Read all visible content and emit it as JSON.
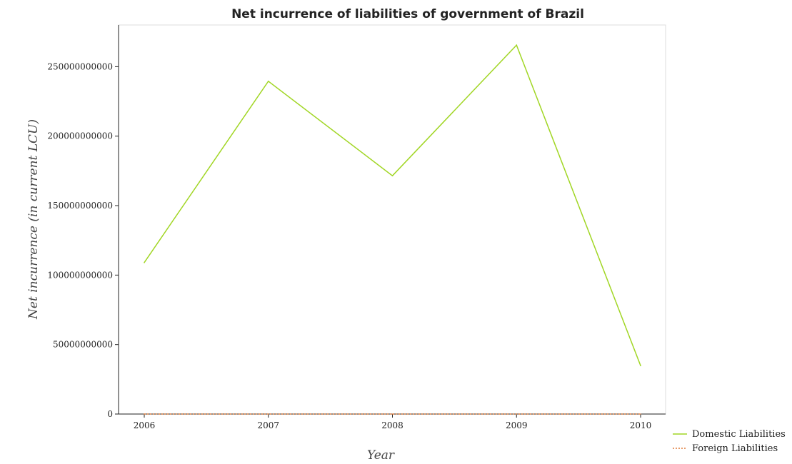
{
  "chart_data": {
    "type": "line",
    "title": "Net incurrence of liabilities of government of Brazil",
    "xlabel": "Year",
    "ylabel": "Net incurrence (in current LCU)",
    "categories": [
      "2006",
      "2007",
      "2008",
      "2009",
      "2010"
    ],
    "series": [
      {
        "name": "Domestic Liabilities",
        "color": "#a1d624",
        "style": "solid",
        "values": [
          109000000000,
          239500000000,
          171500000000,
          265500000000,
          34800000000
        ]
      },
      {
        "name": "Foreign Liabilities",
        "color": "#e07b39",
        "style": "dotted",
        "values": [
          0,
          0,
          0,
          0,
          0
        ]
      }
    ],
    "ylim": [
      0,
      280000000000
    ],
    "yticks": [
      0,
      50000000000,
      100000000000,
      150000000000,
      200000000000,
      250000000000
    ],
    "ytick_labels": [
      "0",
      "50000000000",
      "100000000000",
      "150000000000",
      "200000000000",
      "250000000000"
    ],
    "grid": false,
    "legend_position": "bottom-right"
  }
}
